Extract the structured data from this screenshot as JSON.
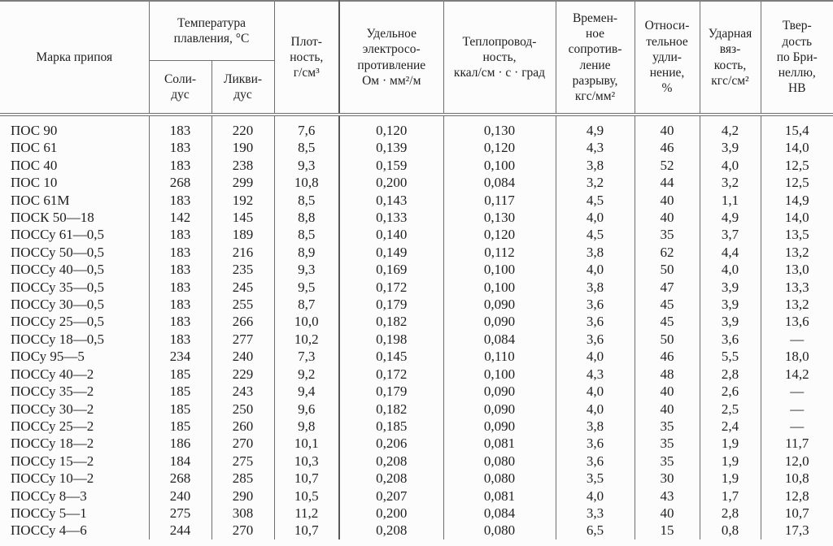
{
  "colors": {
    "bg": "#fcfcfc",
    "line": "#6e6e6e",
    "line-thick": "#5a5a5a",
    "rule-top": "#7e7e7e",
    "text": "#1f1f1f"
  },
  "table": {
    "header": {
      "grade": "Марка припоя",
      "temp_group": "Температура\nплавления, °С",
      "solidus": "Соли-\nдус",
      "liquidus": "Ликви-\nдус",
      "density": "Плот-\nность,\nг/см³",
      "resistivity": "Удельное\nэлектросо-\nпротивление\nОм · мм²/м",
      "conductivity": "Теплопровод-\nность,\nккал/см · с · град",
      "tensile": "Времен-\nное\nсопротив-\nление\nразрыву,\nкгс/мм²",
      "elongation": "Относи-\nтельное\nудли-\nнение,\n%",
      "impact": "Ударная\nвяз-\nкость,\nкгс/см²",
      "hardness": "Твер-\nдость\nпо Бри-\nнеллю,\nНВ"
    },
    "rows": [
      [
        "ПОС 90",
        "183",
        "220",
        "7,6",
        "0,120",
        "0,130",
        "4,9",
        "40",
        "4,2",
        "15,4"
      ],
      [
        "ПОС 61",
        "183",
        "190",
        "8,5",
        "0,139",
        "0,120",
        "4,3",
        "46",
        "3,9",
        "14,0"
      ],
      [
        "ПОС 40",
        "183",
        "238",
        "9,3",
        "0,159",
        "0,100",
        "3,8",
        "52",
        "4,0",
        "12,5"
      ],
      [
        "ПОС 10",
        "268",
        "299",
        "10,8",
        "0,200",
        "0,084",
        "3,2",
        "44",
        "3,2",
        "12,5"
      ],
      [
        "ПОС 61М",
        "183",
        "192",
        "8,5",
        "0,143",
        "0,117",
        "4,5",
        "40",
        "1,1",
        "14,9"
      ],
      [
        "ПОСК 50—18",
        "142",
        "145",
        "8,8",
        "0,133",
        "0,130",
        "4,0",
        "40",
        "4,9",
        "14,0"
      ],
      [
        "ПОССу 61—0,5",
        "183",
        "189",
        "8,5",
        "0,140",
        "0,120",
        "4,5",
        "35",
        "3,7",
        "13,5"
      ],
      [
        "ПОССу 50—0,5",
        "183",
        "216",
        "8,9",
        "0,149",
        "0,112",
        "3,8",
        "62",
        "4,4",
        "13,2"
      ],
      [
        "ПОССу 40—0,5",
        "183",
        "235",
        "9,3",
        "0,169",
        "0,100",
        "4,0",
        "50",
        "4,0",
        "13,0"
      ],
      [
        "ПОССу 35—0,5",
        "183",
        "245",
        "9,5",
        "0,172",
        "0,100",
        "3,8",
        "47",
        "3,9",
        "13,3"
      ],
      [
        "ПОССу 30—0,5",
        "183",
        "255",
        "8,7",
        "0,179",
        "0,090",
        "3,6",
        "45",
        "3,9",
        "13,2"
      ],
      [
        "ПОССу 25—0,5",
        "183",
        "266",
        "10,0",
        "0,182",
        "0,090",
        "3,6",
        "45",
        "3,9",
        "13,6"
      ],
      [
        "ПОССу 18—0,5",
        "183",
        "277",
        "10,2",
        "0,198",
        "0,084",
        "3,6",
        "50",
        "3,6",
        "—"
      ],
      [
        "ПОСу 95—5",
        "234",
        "240",
        "7,3",
        "0,145",
        "0,110",
        "4,0",
        "46",
        "5,5",
        "18,0"
      ],
      [
        "ПОССу 40—2",
        "185",
        "229",
        "9,2",
        "0,172",
        "0,100",
        "4,3",
        "48",
        "2,8",
        "14,2"
      ],
      [
        "ПОССу 35—2",
        "185",
        "243",
        "9,4",
        "0,179",
        "0,090",
        "4,0",
        "40",
        "2,6",
        "—"
      ],
      [
        "ПОССу 30—2",
        "185",
        "250",
        "9,6",
        "0,182",
        "0,090",
        "4,0",
        "40",
        "2,5",
        "—"
      ],
      [
        "ПОССу 25—2",
        "185",
        "260",
        "9,8",
        "0,185",
        "0,090",
        "3,8",
        "35",
        "2,4",
        "—"
      ],
      [
        "ПОССу 18—2",
        "186",
        "270",
        "10,1",
        "0,206",
        "0,081",
        "3,6",
        "35",
        "1,9",
        "11,7"
      ],
      [
        "ПОССу 15—2",
        "184",
        "275",
        "10,3",
        "0,208",
        "0,080",
        "3,6",
        "35",
        "1,9",
        "12,0"
      ],
      [
        "ПОССу 10—2",
        "268",
        "285",
        "10,7",
        "0,208",
        "0,080",
        "3,5",
        "30",
        "1,9",
        "10,8"
      ],
      [
        "ПОССу 8—3",
        "240",
        "290",
        "10,5",
        "0,207",
        "0,081",
        "4,0",
        "43",
        "1,7",
        "12,8"
      ],
      [
        "ПОССу 5—1",
        "275",
        "308",
        "11,2",
        "0,200",
        "0,084",
        "3,3",
        "40",
        "2,8",
        "10,7"
      ],
      [
        "ПОССу 4—6",
        "244",
        "270",
        "10,7",
        "0,208",
        "0,080",
        "6,5",
        "15",
        "0,8",
        "17,3"
      ]
    ]
  }
}
